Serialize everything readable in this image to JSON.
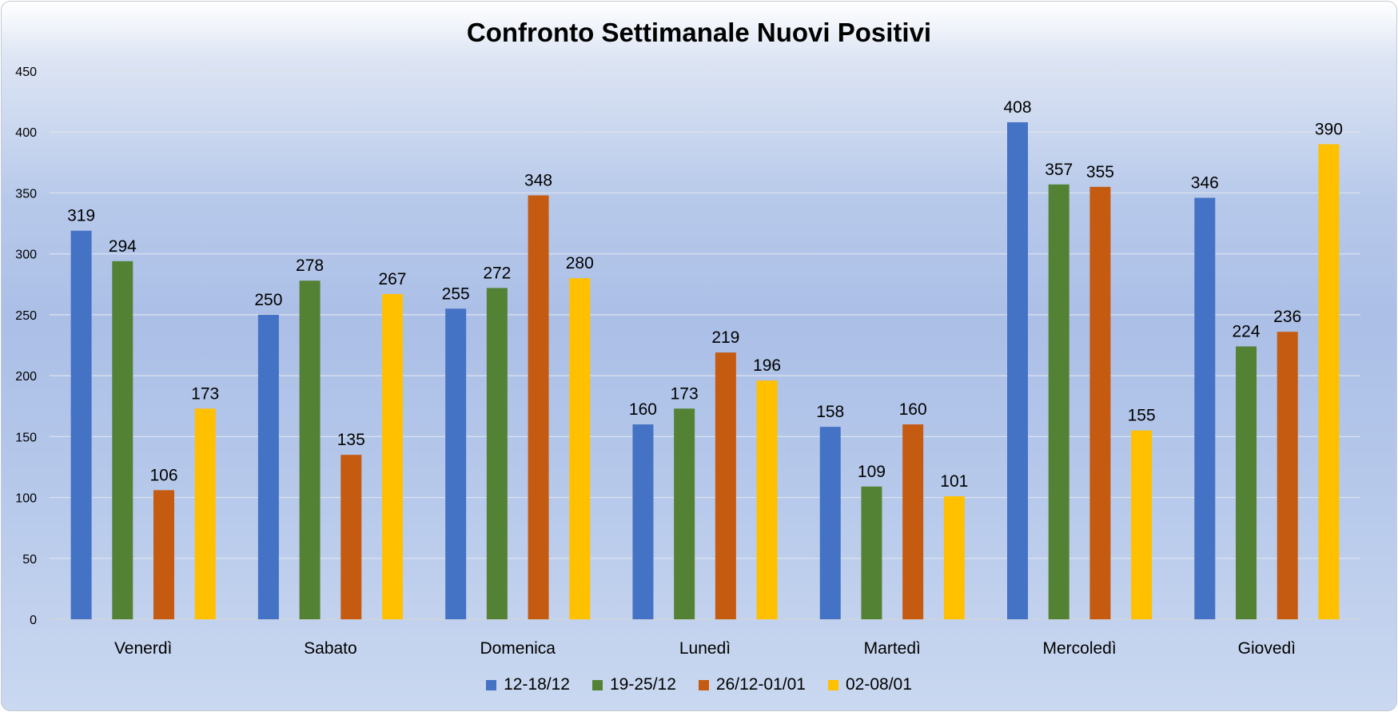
{
  "chart_data": {
    "type": "bar",
    "title": "Confronto Settimanale Nuovi Positivi",
    "xlabel": "",
    "ylabel": "",
    "ylim": [
      0,
      450
    ],
    "yticks": [
      0,
      50,
      100,
      150,
      200,
      250,
      300,
      350,
      400,
      450
    ],
    "grid": true,
    "legend_position": "bottom",
    "categories": [
      "Venerdì",
      "Sabato",
      "Domenica",
      "Lunedì",
      "Martedì",
      "Mercoledì",
      "Giovedì"
    ],
    "series": [
      {
        "name": "12-18/12",
        "color": "#4472c4",
        "values": [
          319,
          250,
          255,
          160,
          158,
          408,
          346
        ]
      },
      {
        "name": "19-25/12",
        "color": "#548235",
        "values": [
          294,
          278,
          272,
          173,
          109,
          357,
          224
        ]
      },
      {
        "name": "26/12-01/01",
        "color": "#c55a11",
        "values": [
          106,
          135,
          348,
          219,
          160,
          355,
          236
        ]
      },
      {
        "name": "02-08/01",
        "color": "#ffc000",
        "values": [
          173,
          267,
          280,
          196,
          101,
          155,
          390
        ]
      }
    ]
  }
}
